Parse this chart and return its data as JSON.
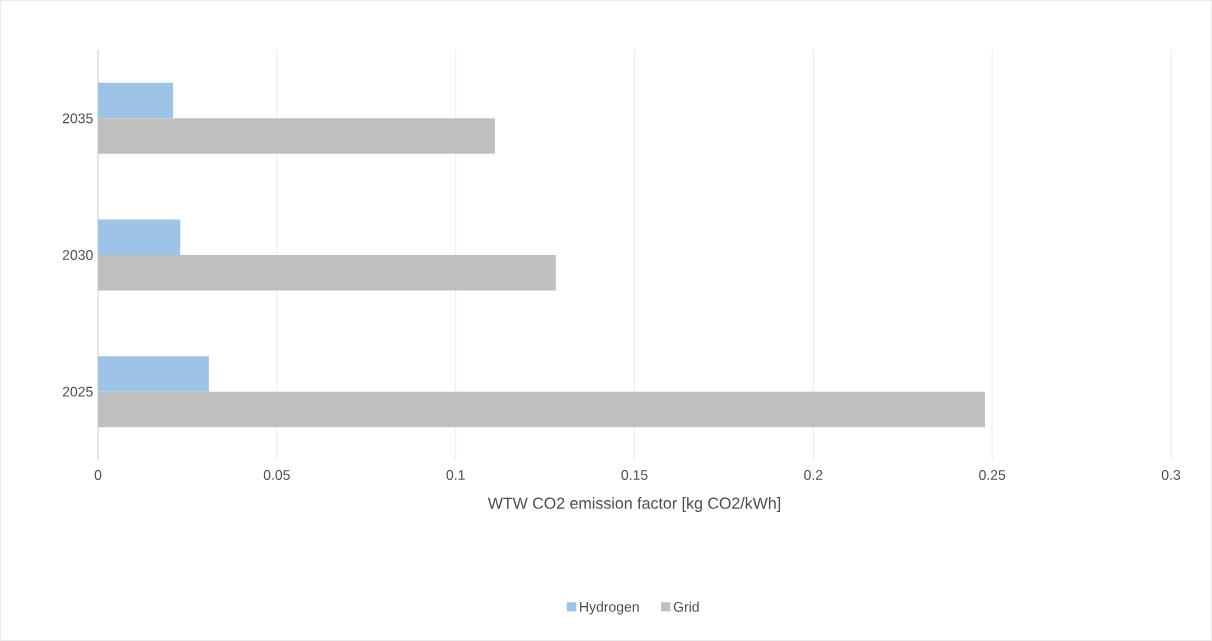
{
  "chart_data": {
    "type": "bar",
    "orientation": "horizontal",
    "categories": [
      "2035",
      "2030",
      "2025"
    ],
    "series": [
      {
        "name": "Hydrogen",
        "color": "#9dc3e6",
        "values": [
          0.021,
          0.023,
          0.031
        ]
      },
      {
        "name": "Grid",
        "color": "#bfbfbf",
        "values": [
          0.111,
          0.128,
          0.248
        ]
      }
    ],
    "xlabel": "WTW CO2 emission factor [kg CO2/kWh]",
    "xlim": [
      0,
      0.3
    ],
    "xticks": [
      0,
      0.05,
      0.1,
      0.15,
      0.2,
      0.25,
      0.3
    ],
    "grid": "x",
    "legend": "bottom"
  }
}
